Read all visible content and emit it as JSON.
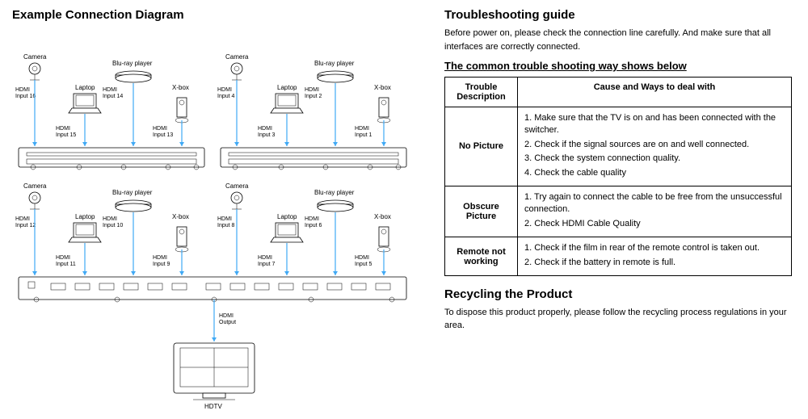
{
  "left": {
    "title": "Example Connection Diagram",
    "devices": {
      "camera": "Camera",
      "laptop": "Laptop",
      "bluray": "Blu-ray player",
      "xbox": "X-box",
      "hdtv": "HDTV"
    },
    "ports": {
      "in16": "HDMI\nInput 16",
      "in15": "HDMI\nInput 15",
      "in14": "HDMI\nInput 14",
      "in13": "HDMI\nInput 13",
      "in12": "HDMI\nInput 12",
      "in11": "HDMI\nInput 11",
      "in10": "HDMI\nInput 10",
      "in9": "HDMI\nInput 9",
      "in8": "HDMI\nInput 8",
      "in7": "HDMI\nInput 7",
      "in6": "HDMI\nInput 6",
      "in5": "HDMI\nInput 5",
      "in4": "HDMI\nInput 4",
      "in3": "HDMI\nInput 3",
      "in2": "HDMI\nInput 2",
      "in1": "HDMI\nInput 1",
      "out": "HDMI\nOutput"
    },
    "colors": {
      "wire": "#3fa9f5",
      "ink": "#000000",
      "bg": "#ffffff"
    }
  },
  "right": {
    "ts_title": "Troubleshooting guide",
    "ts_intro": "Before power on, please check the connection line carefully. And make sure that all interfaces are correctly connected.",
    "ts_subtitle": "The common trouble shooting way shows below",
    "table": {
      "header_desc": "Trouble Description",
      "header_cause": "Cause and Ways to deal with",
      "rows": [
        {
          "desc": "No Picture",
          "items": [
            "1. Make sure that the TV is on and has been connected with the switcher.",
            "2. Check if the signal sources are on and well connected.",
            "3. Check the system connection quality.",
            "4. Check the cable quality"
          ]
        },
        {
          "desc": "Obscure Picture",
          "items": [
            "1. Try again to connect the cable to be free from the unsuccessful connection.",
            "2. Check HDMI Cable Quality"
          ]
        },
        {
          "desc": "Remote not working",
          "items": [
            "1. Check if the film in rear of the remote control is taken out.",
            "2. Check if the battery in remote is full."
          ]
        }
      ]
    },
    "recycle_title": "Recycling the Product",
    "recycle_text": "To dispose this product properly, please follow the recycling process regulations in your area."
  }
}
